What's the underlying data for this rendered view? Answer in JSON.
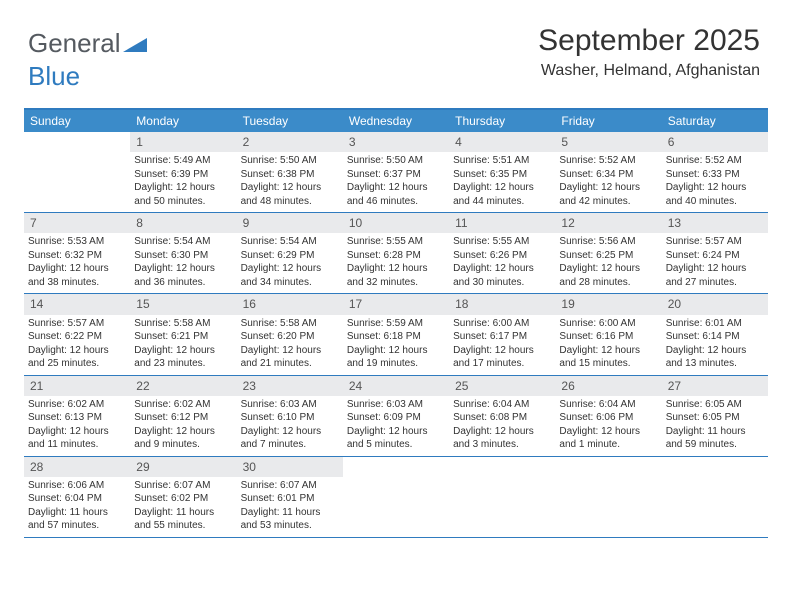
{
  "logo": {
    "text_gray": "General",
    "text_blue": "Blue",
    "shape_color": "#2f7bbf"
  },
  "header": {
    "title": "September 2025",
    "location": "Washer, Helmand, Afghanistan"
  },
  "styling": {
    "header_bg": "#3b8bc9",
    "border_color": "#2f7bbf",
    "daynum_bg": "#e9eaec",
    "page_bg": "#ffffff",
    "text_color": "#333333",
    "weekday_text_color": "#ffffff",
    "title_fontsize": 30,
    "location_fontsize": 16,
    "weekday_fontsize": 12,
    "cell_fontsize": 10
  },
  "weekdays": [
    "Sunday",
    "Monday",
    "Tuesday",
    "Wednesday",
    "Thursday",
    "Friday",
    "Saturday"
  ],
  "weeks": [
    [
      {
        "num": "",
        "sunrise": "",
        "sunset": "",
        "daylight": ""
      },
      {
        "num": "1",
        "sunrise": "Sunrise: 5:49 AM",
        "sunset": "Sunset: 6:39 PM",
        "daylight": "Daylight: 12 hours and 50 minutes."
      },
      {
        "num": "2",
        "sunrise": "Sunrise: 5:50 AM",
        "sunset": "Sunset: 6:38 PM",
        "daylight": "Daylight: 12 hours and 48 minutes."
      },
      {
        "num": "3",
        "sunrise": "Sunrise: 5:50 AM",
        "sunset": "Sunset: 6:37 PM",
        "daylight": "Daylight: 12 hours and 46 minutes."
      },
      {
        "num": "4",
        "sunrise": "Sunrise: 5:51 AM",
        "sunset": "Sunset: 6:35 PM",
        "daylight": "Daylight: 12 hours and 44 minutes."
      },
      {
        "num": "5",
        "sunrise": "Sunrise: 5:52 AM",
        "sunset": "Sunset: 6:34 PM",
        "daylight": "Daylight: 12 hours and 42 minutes."
      },
      {
        "num": "6",
        "sunrise": "Sunrise: 5:52 AM",
        "sunset": "Sunset: 6:33 PM",
        "daylight": "Daylight: 12 hours and 40 minutes."
      }
    ],
    [
      {
        "num": "7",
        "sunrise": "Sunrise: 5:53 AM",
        "sunset": "Sunset: 6:32 PM",
        "daylight": "Daylight: 12 hours and 38 minutes."
      },
      {
        "num": "8",
        "sunrise": "Sunrise: 5:54 AM",
        "sunset": "Sunset: 6:30 PM",
        "daylight": "Daylight: 12 hours and 36 minutes."
      },
      {
        "num": "9",
        "sunrise": "Sunrise: 5:54 AM",
        "sunset": "Sunset: 6:29 PM",
        "daylight": "Daylight: 12 hours and 34 minutes."
      },
      {
        "num": "10",
        "sunrise": "Sunrise: 5:55 AM",
        "sunset": "Sunset: 6:28 PM",
        "daylight": "Daylight: 12 hours and 32 minutes."
      },
      {
        "num": "11",
        "sunrise": "Sunrise: 5:55 AM",
        "sunset": "Sunset: 6:26 PM",
        "daylight": "Daylight: 12 hours and 30 minutes."
      },
      {
        "num": "12",
        "sunrise": "Sunrise: 5:56 AM",
        "sunset": "Sunset: 6:25 PM",
        "daylight": "Daylight: 12 hours and 28 minutes."
      },
      {
        "num": "13",
        "sunrise": "Sunrise: 5:57 AM",
        "sunset": "Sunset: 6:24 PM",
        "daylight": "Daylight: 12 hours and 27 minutes."
      }
    ],
    [
      {
        "num": "14",
        "sunrise": "Sunrise: 5:57 AM",
        "sunset": "Sunset: 6:22 PM",
        "daylight": "Daylight: 12 hours and 25 minutes."
      },
      {
        "num": "15",
        "sunrise": "Sunrise: 5:58 AM",
        "sunset": "Sunset: 6:21 PM",
        "daylight": "Daylight: 12 hours and 23 minutes."
      },
      {
        "num": "16",
        "sunrise": "Sunrise: 5:58 AM",
        "sunset": "Sunset: 6:20 PM",
        "daylight": "Daylight: 12 hours and 21 minutes."
      },
      {
        "num": "17",
        "sunrise": "Sunrise: 5:59 AM",
        "sunset": "Sunset: 6:18 PM",
        "daylight": "Daylight: 12 hours and 19 minutes."
      },
      {
        "num": "18",
        "sunrise": "Sunrise: 6:00 AM",
        "sunset": "Sunset: 6:17 PM",
        "daylight": "Daylight: 12 hours and 17 minutes."
      },
      {
        "num": "19",
        "sunrise": "Sunrise: 6:00 AM",
        "sunset": "Sunset: 6:16 PM",
        "daylight": "Daylight: 12 hours and 15 minutes."
      },
      {
        "num": "20",
        "sunrise": "Sunrise: 6:01 AM",
        "sunset": "Sunset: 6:14 PM",
        "daylight": "Daylight: 12 hours and 13 minutes."
      }
    ],
    [
      {
        "num": "21",
        "sunrise": "Sunrise: 6:02 AM",
        "sunset": "Sunset: 6:13 PM",
        "daylight": "Daylight: 12 hours and 11 minutes."
      },
      {
        "num": "22",
        "sunrise": "Sunrise: 6:02 AM",
        "sunset": "Sunset: 6:12 PM",
        "daylight": "Daylight: 12 hours and 9 minutes."
      },
      {
        "num": "23",
        "sunrise": "Sunrise: 6:03 AM",
        "sunset": "Sunset: 6:10 PM",
        "daylight": "Daylight: 12 hours and 7 minutes."
      },
      {
        "num": "24",
        "sunrise": "Sunrise: 6:03 AM",
        "sunset": "Sunset: 6:09 PM",
        "daylight": "Daylight: 12 hours and 5 minutes."
      },
      {
        "num": "25",
        "sunrise": "Sunrise: 6:04 AM",
        "sunset": "Sunset: 6:08 PM",
        "daylight": "Daylight: 12 hours and 3 minutes."
      },
      {
        "num": "26",
        "sunrise": "Sunrise: 6:04 AM",
        "sunset": "Sunset: 6:06 PM",
        "daylight": "Daylight: 12 hours and 1 minute."
      },
      {
        "num": "27",
        "sunrise": "Sunrise: 6:05 AM",
        "sunset": "Sunset: 6:05 PM",
        "daylight": "Daylight: 11 hours and 59 minutes."
      }
    ],
    [
      {
        "num": "28",
        "sunrise": "Sunrise: 6:06 AM",
        "sunset": "Sunset: 6:04 PM",
        "daylight": "Daylight: 11 hours and 57 minutes."
      },
      {
        "num": "29",
        "sunrise": "Sunrise: 6:07 AM",
        "sunset": "Sunset: 6:02 PM",
        "daylight": "Daylight: 11 hours and 55 minutes."
      },
      {
        "num": "30",
        "sunrise": "Sunrise: 6:07 AM",
        "sunset": "Sunset: 6:01 PM",
        "daylight": "Daylight: 11 hours and 53 minutes."
      },
      {
        "num": "",
        "sunrise": "",
        "sunset": "",
        "daylight": ""
      },
      {
        "num": "",
        "sunrise": "",
        "sunset": "",
        "daylight": ""
      },
      {
        "num": "",
        "sunrise": "",
        "sunset": "",
        "daylight": ""
      },
      {
        "num": "",
        "sunrise": "",
        "sunset": "",
        "daylight": ""
      }
    ]
  ]
}
